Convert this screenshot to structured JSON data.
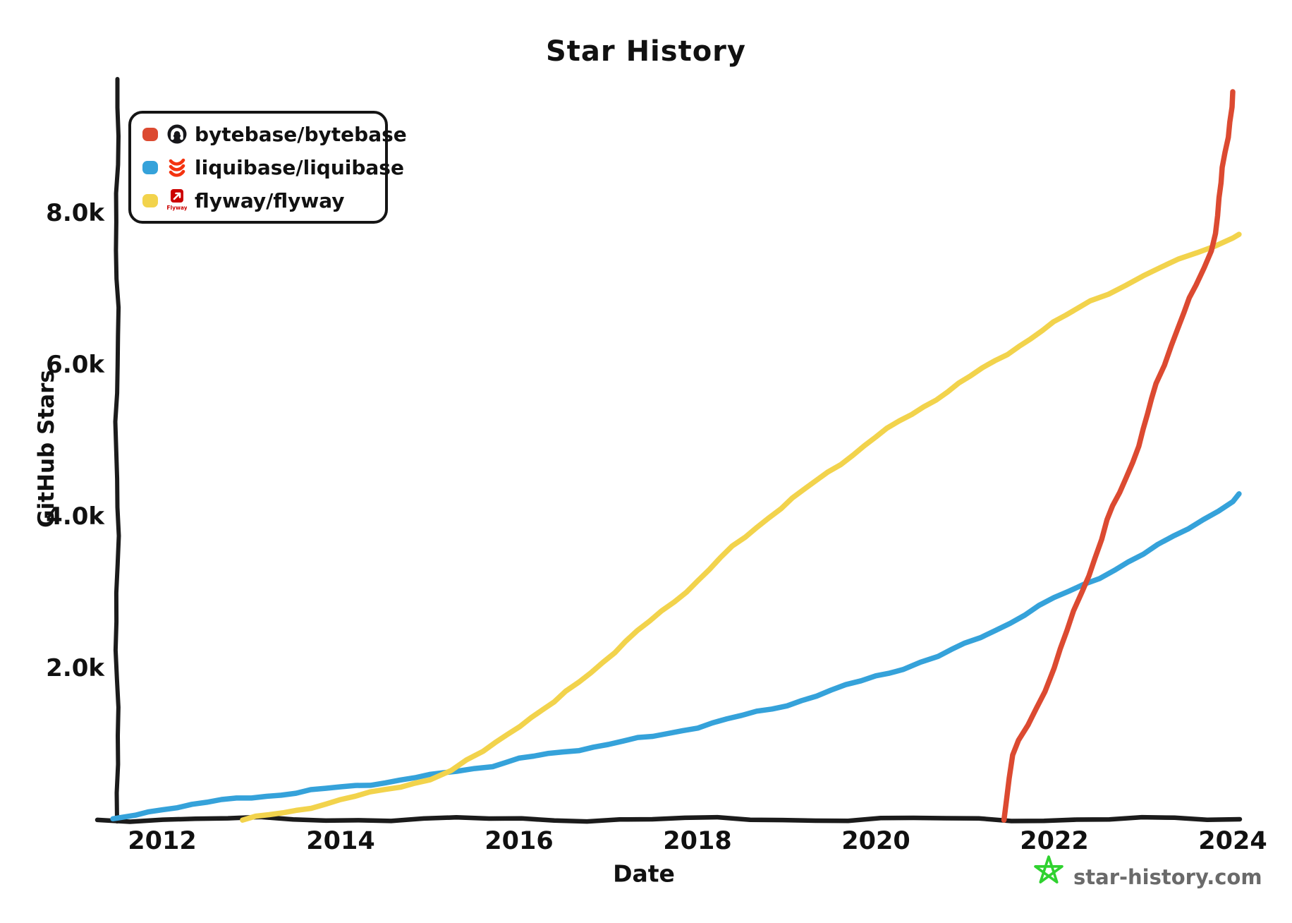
{
  "title": "Star History",
  "axes": {
    "x_label": "Date",
    "y_label": "GitHub Stars"
  },
  "legend": [
    {
      "repo": "bytebase/bytebase",
      "color": "#DC4A31",
      "icon": "bytebase-avatar-icon"
    },
    {
      "repo": "liquibase/liquibase",
      "color": "#35A2DA",
      "icon": "liquibase-logo-icon"
    },
    {
      "repo": "flyway/flyway",
      "color": "#F2D34C",
      "icon": "flyway-logo-icon",
      "icon_text": "Flyway"
    }
  ],
  "watermark": {
    "text": "star-history.com",
    "star_icon": "green-doodle-star-icon",
    "star_color": "#2FD22F",
    "text_color": "#6a6a6a"
  },
  "colors": {
    "axis": "#1b1b1b",
    "background": "#ffffff"
  },
  "chart_data": {
    "type": "line",
    "title": "Star History",
    "xlabel": "Date",
    "ylabel": "GitHub Stars",
    "x_range": [
      2011.4,
      2024.1
    ],
    "ylim": [
      0,
      9700
    ],
    "grid": false,
    "legend_position": "top-left",
    "x_ticks": [
      {
        "v": 2012,
        "label": "2012"
      },
      {
        "v": 2014,
        "label": "2014"
      },
      {
        "v": 2016,
        "label": "2016"
      },
      {
        "v": 2018,
        "label": "2018"
      },
      {
        "v": 2020,
        "label": "2020"
      },
      {
        "v": 2022,
        "label": "2022"
      },
      {
        "v": 2024,
        "label": "2024"
      }
    ],
    "y_ticks": [
      {
        "v": 2000,
        "label": "2.0k"
      },
      {
        "v": 4000,
        "label": "4.0k"
      },
      {
        "v": 6000,
        "label": "6.0k"
      },
      {
        "v": 8000,
        "label": "8.0k"
      }
    ],
    "series": [
      {
        "name": "bytebase/bytebase",
        "color": "#DC4A31",
        "points": [
          [
            2021.43,
            0
          ],
          [
            2021.46,
            250
          ],
          [
            2021.5,
            550
          ],
          [
            2021.55,
            850
          ],
          [
            2021.6,
            1050
          ],
          [
            2021.7,
            1250
          ],
          [
            2021.88,
            1700
          ],
          [
            2022.0,
            2000
          ],
          [
            2022.15,
            2500
          ],
          [
            2022.3,
            3000
          ],
          [
            2022.45,
            3450
          ],
          [
            2022.6,
            3950
          ],
          [
            2022.8,
            4500
          ],
          [
            2023.0,
            5150
          ],
          [
            2023.15,
            5750
          ],
          [
            2023.3,
            6250
          ],
          [
            2023.45,
            6700
          ],
          [
            2023.6,
            7050
          ],
          [
            2023.76,
            7500
          ],
          [
            2023.85,
            8200
          ],
          [
            2023.92,
            8800
          ],
          [
            2024.0,
            9600
          ]
        ]
      },
      {
        "name": "liquibase/liquibase",
        "color": "#35A2DA",
        "points": [
          [
            2011.45,
            0
          ],
          [
            2011.7,
            60
          ],
          [
            2012.0,
            150
          ],
          [
            2012.5,
            230
          ],
          [
            2013.0,
            300
          ],
          [
            2013.5,
            360
          ],
          [
            2014.0,
            430
          ],
          [
            2014.5,
            500
          ],
          [
            2015.0,
            580
          ],
          [
            2015.3,
            650
          ],
          [
            2015.7,
            720
          ],
          [
            2016.0,
            800
          ],
          [
            2016.5,
            900
          ],
          [
            2017.0,
            1000
          ],
          [
            2017.5,
            1100
          ],
          [
            2018.0,
            1230
          ],
          [
            2018.5,
            1370
          ],
          [
            2019.0,
            1520
          ],
          [
            2019.5,
            1700
          ],
          [
            2020.0,
            1900
          ],
          [
            2020.3,
            2000
          ],
          [
            2020.7,
            2150
          ],
          [
            2021.0,
            2320
          ],
          [
            2021.5,
            2600
          ],
          [
            2022.0,
            2920
          ],
          [
            2022.5,
            3200
          ],
          [
            2023.0,
            3500
          ],
          [
            2023.5,
            3850
          ],
          [
            2024.0,
            4200
          ],
          [
            2024.07,
            4300
          ]
        ]
      },
      {
        "name": "flyway/flyway",
        "color": "#F2D34C",
        "points": [
          [
            2012.9,
            0
          ],
          [
            2013.2,
            60
          ],
          [
            2013.5,
            130
          ],
          [
            2014.0,
            260
          ],
          [
            2014.5,
            400
          ],
          [
            2015.0,
            540
          ],
          [
            2015.24,
            650
          ],
          [
            2015.6,
            900
          ],
          [
            2016.0,
            1250
          ],
          [
            2016.4,
            1550
          ],
          [
            2016.8,
            1950
          ],
          [
            2017.2,
            2350
          ],
          [
            2017.6,
            2750
          ],
          [
            2018.0,
            3150
          ],
          [
            2018.4,
            3600
          ],
          [
            2018.8,
            4000
          ],
          [
            2019.2,
            4350
          ],
          [
            2019.6,
            4700
          ],
          [
            2020.0,
            5050
          ],
          [
            2020.4,
            5350
          ],
          [
            2020.8,
            5650
          ],
          [
            2021.2,
            5950
          ],
          [
            2021.6,
            6250
          ],
          [
            2022.0,
            6550
          ],
          [
            2022.4,
            6850
          ],
          [
            2022.8,
            7050
          ],
          [
            2023.2,
            7280
          ],
          [
            2023.6,
            7480
          ],
          [
            2024.0,
            7680
          ],
          [
            2024.07,
            7720
          ]
        ]
      }
    ]
  }
}
